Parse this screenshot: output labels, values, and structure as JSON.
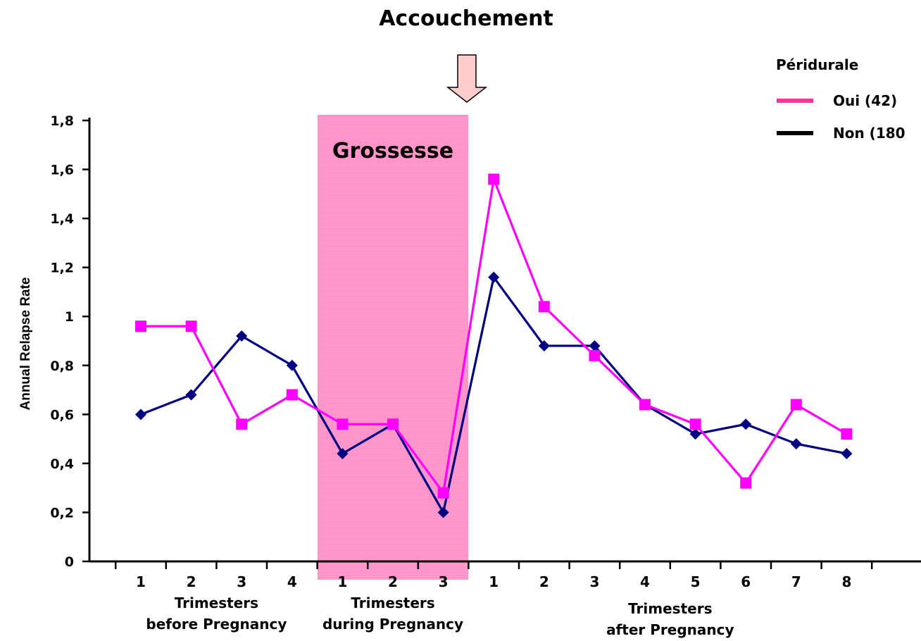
{
  "chart_data": {
    "type": "line",
    "title": "Accouchement",
    "band_label": "Grossesse",
    "ylabel": "Annual Relapse Rate",
    "ylim": [
      0,
      1.8
    ],
    "yticks": [
      "0",
      "0,2",
      "0,4",
      "0,6",
      "0,8",
      "1",
      "1,2",
      "1,4",
      "1,6",
      "1,8"
    ],
    "categories": [
      "1",
      "2",
      "3",
      "4",
      "1",
      "2",
      "3",
      "1",
      "2",
      "3",
      "4",
      "5",
      "6",
      "7",
      "8"
    ],
    "groups": [
      {
        "line1": "Trimesters",
        "line2": "before Pregnancy"
      },
      {
        "line1": "Trimesters",
        "line2": "during Pregnancy"
      },
      {
        "line1": "Trimesters",
        "line2": "after Pregnancy"
      }
    ],
    "legend_title": "Péridurale",
    "legend_placement": "top-right",
    "series": [
      {
        "name": "Oui (42)",
        "color": "#ff00ff",
        "marker": "square",
        "values": [
          0.96,
          0.96,
          0.56,
          0.68,
          0.56,
          0.56,
          0.28,
          1.56,
          1.04,
          0.84,
          0.64,
          0.56,
          0.32,
          0.64,
          0.52
        ]
      },
      {
        "name": "Non (180",
        "color": "#000080",
        "marker": "diamond",
        "values": [
          0.6,
          0.68,
          0.92,
          0.8,
          0.44,
          0.56,
          0.2,
          1.16,
          0.88,
          0.88,
          0.64,
          0.52,
          0.56,
          0.48,
          0.44
        ]
      }
    ],
    "colors": {
      "band": "#ff99cc",
      "arrow": "#ffcccc",
      "legend_oui": "#ff3399",
      "legend_non": "#000000"
    }
  }
}
